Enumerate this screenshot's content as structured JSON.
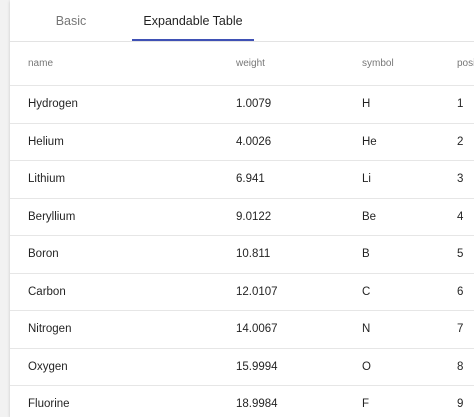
{
  "tabs": [
    {
      "label": "Basic",
      "active": false
    },
    {
      "label": "Expandable Table",
      "active": true
    }
  ],
  "accent_color": "#3f51b5",
  "table": {
    "columns": [
      "name",
      "weight",
      "symbol",
      "position"
    ],
    "rows": [
      {
        "name": "Hydrogen",
        "weight": "1.0079",
        "symbol": "H",
        "position": "1"
      },
      {
        "name": "Helium",
        "weight": "4.0026",
        "symbol": "He",
        "position": "2"
      },
      {
        "name": "Lithium",
        "weight": "6.941",
        "symbol": "Li",
        "position": "3"
      },
      {
        "name": "Beryllium",
        "weight": "9.0122",
        "symbol": "Be",
        "position": "4"
      },
      {
        "name": "Boron",
        "weight": "10.811",
        "symbol": "B",
        "position": "5"
      },
      {
        "name": "Carbon",
        "weight": "12.0107",
        "symbol": "C",
        "position": "6"
      },
      {
        "name": "Nitrogen",
        "weight": "14.0067",
        "symbol": "N",
        "position": "7"
      },
      {
        "name": "Oxygen",
        "weight": "15.9994",
        "symbol": "O",
        "position": "8"
      },
      {
        "name": "Fluorine",
        "weight": "18.9984",
        "symbol": "F",
        "position": "9"
      }
    ]
  }
}
